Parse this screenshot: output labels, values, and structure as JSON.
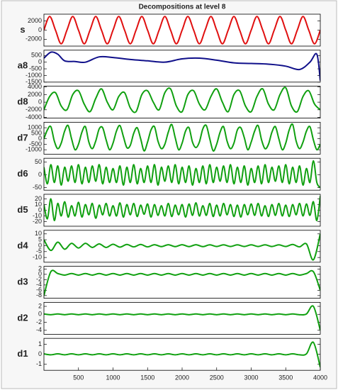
{
  "chart_data": [
    {
      "type": "line",
      "title": "Decompositions at level 8",
      "ylabel": "s",
      "color": "#e01010",
      "xlim": [
        0,
        4000
      ],
      "ylim": [
        -3500,
        3500
      ],
      "yticks": [
        -2000,
        0,
        2000
      ],
      "x": [
        0,
        83,
        167,
        250,
        333,
        417,
        500,
        583,
        667,
        750,
        833,
        917,
        1000,
        1083,
        1167,
        1250,
        1333,
        1417,
        1500,
        1583,
        1667,
        1750,
        1833,
        1917,
        2000,
        2083,
        2167,
        2250,
        2333,
        2417,
        2500,
        2583,
        2667,
        2750,
        2833,
        2917,
        3000,
        3083,
        3167,
        3250,
        3333,
        3417,
        3500,
        3583,
        3667,
        3750,
        3833,
        3917,
        4000
      ],
      "values": [
        0,
        3000,
        0,
        -3000,
        0,
        3000,
        0,
        -3000,
        0,
        3000,
        0,
        -3000,
        0,
        3000,
        0,
        -3000,
        0,
        3000,
        0,
        -3000,
        0,
        3000,
        0,
        -3000,
        0,
        3000,
        0,
        -3000,
        0,
        3000,
        0,
        -3000,
        0,
        3000,
        0,
        -3000,
        0,
        3000,
        0,
        -3000,
        0,
        3000,
        0,
        -3000,
        0,
        3000,
        0,
        -3000,
        0
      ]
    },
    {
      "type": "line",
      "ylabel": "a8",
      "color": "#10108a",
      "xlim": [
        0,
        4000
      ],
      "ylim": [
        -1500,
        900
      ],
      "yticks": [
        -1500,
        -1000,
        -500,
        0,
        500
      ],
      "x": [
        0,
        100,
        200,
        300,
        450,
        600,
        800,
        1000,
        1250,
        1500,
        1750,
        2000,
        2250,
        2500,
        2750,
        3000,
        3250,
        3500,
        3700,
        3850,
        3950,
        4000
      ],
      "values": [
        300,
        750,
        600,
        100,
        50,
        0,
        400,
        350,
        200,
        100,
        0,
        250,
        300,
        150,
        -50,
        -100,
        -150,
        -300,
        -550,
        0,
        600,
        -1400
      ]
    },
    {
      "type": "line",
      "ylabel": "d8",
      "color": "#10a010",
      "xlim": [
        0,
        4000
      ],
      "ylim": [
        -4200,
        4200
      ],
      "yticks": [
        -4000,
        -2000,
        0,
        2000,
        4000
      ],
      "x": [
        0,
        83,
        167,
        250,
        333,
        417,
        500,
        583,
        667,
        750,
        833,
        917,
        1000,
        1083,
        1167,
        1250,
        1333,
        1417,
        1500,
        1583,
        1667,
        1750,
        1833,
        1917,
        2000,
        2083,
        2167,
        2250,
        2333,
        2417,
        2500,
        2583,
        2667,
        2750,
        2833,
        2917,
        3000,
        3083,
        3167,
        3250,
        3333,
        3417,
        3500,
        3583,
        3667,
        3750,
        3833,
        3917,
        4000
      ],
      "values": [
        -2000,
        1500,
        2500,
        -1000,
        -2000,
        2000,
        3000,
        -500,
        -2500,
        1000,
        3500,
        0,
        -2000,
        1500,
        2500,
        -1500,
        -2500,
        2000,
        3000,
        0,
        -2000,
        2500,
        3500,
        -1000,
        -2500,
        2000,
        3000,
        -500,
        -2000,
        1500,
        3500,
        0,
        -2500,
        2000,
        3000,
        -1000,
        -2500,
        1500,
        3500,
        -500,
        -2000,
        2000,
        3800,
        -1000,
        -2500,
        1500,
        3000,
        -500,
        -2000
      ]
    },
    {
      "type": "line",
      "ylabel": "d7",
      "color": "#10a010",
      "xlim": [
        0,
        4000
      ],
      "ylim": [
        -1400,
        1500
      ],
      "yticks": [
        -1000,
        -500,
        0,
        500,
        1000
      ],
      "x": [
        0,
        50,
        100,
        150,
        200,
        250,
        300,
        350,
        400,
        450,
        500,
        550,
        600,
        650,
        700,
        750,
        800,
        850,
        900,
        950,
        1000,
        1050,
        1100,
        1150,
        1200,
        1250,
        1300,
        1350,
        1400,
        1450,
        1500,
        1550,
        1600,
        1650,
        1700,
        1750,
        1800,
        1850,
        1900,
        1950,
        2000,
        2050,
        2100,
        2150,
        2200,
        2250,
        2300,
        2350,
        2400,
        2450,
        2500,
        2550,
        2600,
        2650,
        2700,
        2750,
        2800,
        2850,
        2900,
        2950,
        3000,
        3050,
        3100,
        3150,
        3200,
        3250,
        3300,
        3350,
        3400,
        3450,
        3500,
        3550,
        3600,
        3650,
        3700,
        3750,
        3800,
        3850,
        3900,
        3950,
        4000
      ],
      "values": [
        0,
        800,
        1100,
        -200,
        -900,
        -400,
        700,
        1200,
        0,
        -1000,
        -500,
        600,
        1100,
        -300,
        -900,
        -200,
        900,
        1000,
        -100,
        -1000,
        -400,
        700,
        1200,
        200,
        -800,
        -600,
        500,
        1000,
        0,
        -1100,
        -300,
        800,
        1100,
        -200,
        -900,
        -500,
        600,
        1300,
        100,
        -1000,
        -400,
        700,
        1000,
        -300,
        -800,
        -300,
        900,
        1200,
        0,
        -1100,
        -500,
        600,
        1100,
        -200,
        -900,
        -400,
        800,
        1000,
        100,
        -1000,
        -300,
        700,
        1200,
        -100,
        -900,
        -500,
        600,
        1100,
        0,
        -1000,
        -400,
        800,
        1300,
        -200,
        -900,
        -300,
        700,
        1100,
        -100,
        -1000,
        -500
      ]
    },
    {
      "type": "line",
      "ylabel": "d6",
      "color": "#10a010",
      "xlim": [
        0,
        4000
      ],
      "ylim": [
        -60,
        65
      ],
      "yticks": [
        -50,
        0,
        50
      ],
      "x": [
        0,
        50,
        100,
        150,
        200,
        250,
        300,
        350,
        400,
        450,
        500,
        550,
        600,
        650,
        700,
        750,
        800,
        850,
        900,
        950,
        1000,
        1050,
        1100,
        1150,
        1200,
        1250,
        1300,
        1350,
        1400,
        1450,
        1500,
        1550,
        1600,
        1650,
        1700,
        1750,
        1800,
        1850,
        1900,
        1950,
        2000,
        2050,
        2100,
        2150,
        2200,
        2250,
        2300,
        2350,
        2400,
        2450,
        2500,
        2550,
        2600,
        2650,
        2700,
        2750,
        2800,
        2850,
        2900,
        2950,
        3000,
        3050,
        3100,
        3150,
        3200,
        3250,
        3300,
        3350,
        3400,
        3450,
        3500,
        3550,
        3600,
        3650,
        3700,
        3750,
        3800,
        3850,
        3900,
        3950,
        4000
      ],
      "values": [
        30,
        -35,
        40,
        -30,
        35,
        -40,
        30,
        -25,
        35,
        -30,
        40,
        -35,
        30,
        -30,
        35,
        -25,
        40,
        -35,
        30,
        -30,
        25,
        -30,
        35,
        -40,
        30,
        -30,
        40,
        -35,
        25,
        -30,
        35,
        -30,
        40,
        -40,
        30,
        -25,
        35,
        -30,
        40,
        -35,
        30,
        -30,
        35,
        -40,
        25,
        -30,
        35,
        -35,
        40,
        -30,
        30,
        -25,
        35,
        -30,
        40,
        -35,
        30,
        -30,
        35,
        -40,
        25,
        -30,
        35,
        -35,
        40,
        -30,
        30,
        -25,
        35,
        -30,
        40,
        -35,
        30,
        -30,
        35,
        -40,
        25,
        -30,
        55,
        -30,
        -50
      ]
    },
    {
      "type": "line",
      "ylabel": "d5",
      "color": "#10a010",
      "xlim": [
        0,
        4000
      ],
      "ylim": [
        -28,
        28
      ],
      "yticks": [
        -20,
        -10,
        0,
        10,
        20
      ],
      "x": [
        0,
        50,
        100,
        150,
        200,
        250,
        300,
        350,
        400,
        450,
        500,
        550,
        600,
        650,
        700,
        750,
        800,
        850,
        900,
        950,
        1000,
        1050,
        1100,
        1150,
        1200,
        1250,
        1300,
        1350,
        1400,
        1450,
        1500,
        1550,
        1600,
        1650,
        1700,
        1750,
        1800,
        1850,
        1900,
        1950,
        2000,
        2050,
        2100,
        2150,
        2200,
        2250,
        2300,
        2350,
        2400,
        2450,
        2500,
        2550,
        2600,
        2650,
        2700,
        2750,
        2800,
        2850,
        2900,
        2950,
        3000,
        3050,
        3100,
        3150,
        3200,
        3250,
        3300,
        3350,
        3400,
        3450,
        3500,
        3550,
        3600,
        3650,
        3700,
        3750,
        3800,
        3850,
        3900,
        3950,
        4000
      ],
      "values": [
        10,
        -15,
        20,
        -18,
        12,
        -10,
        15,
        -12,
        8,
        -10,
        14,
        -12,
        10,
        -8,
        12,
        -14,
        9,
        -8,
        12,
        -10,
        8,
        -10,
        13,
        -12,
        10,
        -8,
        12,
        -11,
        9,
        -7,
        11,
        -12,
        10,
        -9,
        8,
        -10,
        12,
        -11,
        9,
        -8,
        10,
        -12,
        11,
        -9,
        13,
        -10,
        8,
        -9,
        12,
        -11,
        9,
        -10,
        12,
        -8,
        10,
        -11,
        9,
        -12,
        10,
        -8,
        11,
        -9,
        12,
        -10,
        8,
        -11,
        10,
        -9,
        12,
        -10,
        9,
        -11,
        10,
        -8,
        12,
        -10,
        11,
        -9,
        15,
        -18,
        25
      ]
    },
    {
      "type": "line",
      "ylabel": "d4",
      "color": "#10a010",
      "xlim": [
        0,
        4000
      ],
      "ylim": [
        -14,
        13
      ],
      "yticks": [
        -10,
        -5,
        0,
        5,
        10
      ],
      "x": [
        0,
        100,
        200,
        300,
        400,
        500,
        600,
        700,
        800,
        900,
        1000,
        1100,
        1200,
        1300,
        1400,
        1500,
        1600,
        1700,
        1800,
        1900,
        2000,
        2100,
        2200,
        2300,
        2400,
        2500,
        2600,
        2700,
        2800,
        2900,
        3000,
        3100,
        3200,
        3300,
        3400,
        3500,
        3600,
        3700,
        3800,
        3900,
        4000
      ],
      "values": [
        5,
        -4,
        3,
        -3,
        2,
        -2,
        2,
        -1.5,
        1.5,
        -1.5,
        1.2,
        -1.2,
        1,
        -1,
        1,
        -1,
        0.8,
        -0.8,
        0.8,
        -0.8,
        0.8,
        -0.8,
        0.8,
        -0.8,
        0.7,
        -0.7,
        0.7,
        -0.7,
        0.7,
        -0.7,
        0.7,
        -0.7,
        0.7,
        -0.7,
        0.7,
        -0.7,
        1,
        -1,
        1.5,
        -12,
        10
      ]
    },
    {
      "type": "line",
      "ylabel": "d3",
      "color": "#10a010",
      "xlim": [
        0,
        4000
      ],
      "ylim": [
        -9,
        3
      ],
      "yticks": [
        -8,
        -6,
        -4,
        -2,
        0,
        2
      ],
      "x": [
        0,
        100,
        200,
        300,
        400,
        500,
        600,
        700,
        800,
        900,
        1000,
        1100,
        1200,
        1300,
        1400,
        1500,
        1600,
        1700,
        1800,
        1900,
        2000,
        2100,
        2200,
        2300,
        2400,
        2500,
        2600,
        2700,
        2800,
        2900,
        3000,
        3100,
        3200,
        3300,
        3400,
        3500,
        3600,
        3700,
        3800,
        3900,
        4000
      ],
      "values": [
        -8,
        1,
        0.3,
        -0.3,
        0.3,
        -0.3,
        0.3,
        -0.3,
        0.3,
        -0.3,
        0.3,
        -0.3,
        0.3,
        -0.3,
        0.3,
        -0.3,
        0.3,
        -0.3,
        0.3,
        -0.3,
        0.3,
        -0.3,
        0.3,
        -0.3,
        0.3,
        -0.3,
        0.3,
        -0.3,
        0.3,
        -0.3,
        0.3,
        -0.3,
        0.3,
        -0.3,
        0.3,
        -0.3,
        0.3,
        -0.3,
        0.3,
        1,
        -6
      ]
    },
    {
      "type": "line",
      "ylabel": "d2",
      "color": "#10a010",
      "xlim": [
        0,
        4000
      ],
      "ylim": [
        -5,
        3
      ],
      "yticks": [
        -4,
        -2,
        0,
        2
      ],
      "x": [
        0,
        100,
        200,
        300,
        400,
        500,
        600,
        700,
        800,
        900,
        1000,
        1100,
        1200,
        1300,
        1400,
        1500,
        1600,
        1700,
        1800,
        1900,
        2000,
        2100,
        2200,
        2300,
        2400,
        2500,
        2600,
        2700,
        2800,
        2900,
        3000,
        3100,
        3200,
        3300,
        3400,
        3500,
        3600,
        3700,
        3800,
        3900,
        4000
      ],
      "values": [
        0.1,
        -0.1,
        0.1,
        -0.1,
        0.1,
        -0.1,
        0.1,
        -0.1,
        0.1,
        -0.1,
        0.1,
        -0.1,
        0.1,
        -0.1,
        0.1,
        -0.1,
        0.1,
        -0.1,
        0.1,
        -0.1,
        0.1,
        -0.1,
        0.1,
        -0.1,
        0.1,
        -0.1,
        0.1,
        -0.1,
        0.1,
        -0.1,
        0.1,
        -0.1,
        0.1,
        -0.1,
        0.1,
        -0.1,
        0.1,
        -0.1,
        0.1,
        2,
        -4
      ]
    },
    {
      "type": "line",
      "ylabel": "d1",
      "color": "#10a010",
      "xlim": [
        0,
        4000
      ],
      "ylim": [
        -1.6,
        1.6
      ],
      "yticks": [
        -1,
        0,
        1
      ],
      "xticks": [
        500,
        1000,
        1500,
        2000,
        2500,
        3000,
        3500,
        4000
      ],
      "x": [
        0,
        100,
        200,
        300,
        400,
        500,
        600,
        700,
        800,
        900,
        1000,
        1100,
        1200,
        1300,
        1400,
        1500,
        1600,
        1700,
        1800,
        1900,
        2000,
        2100,
        2200,
        2300,
        2400,
        2500,
        2600,
        2700,
        2800,
        2900,
        3000,
        3100,
        3200,
        3300,
        3400,
        3500,
        3600,
        3700,
        3800,
        3900,
        4000
      ],
      "values": [
        0.05,
        -0.05,
        0.05,
        -0.05,
        0.05,
        -0.05,
        0.05,
        -0.05,
        0.05,
        -0.05,
        0.05,
        -0.05,
        0.05,
        -0.05,
        0.05,
        -0.05,
        0.05,
        -0.05,
        0.05,
        -0.05,
        0.05,
        -0.05,
        0.05,
        -0.05,
        0.05,
        -0.05,
        0.05,
        -0.05,
        0.05,
        -0.05,
        0.05,
        -0.05,
        0.05,
        -0.05,
        0.05,
        -0.05,
        0.05,
        -0.05,
        0.05,
        1.2,
        -1.3
      ]
    }
  ]
}
